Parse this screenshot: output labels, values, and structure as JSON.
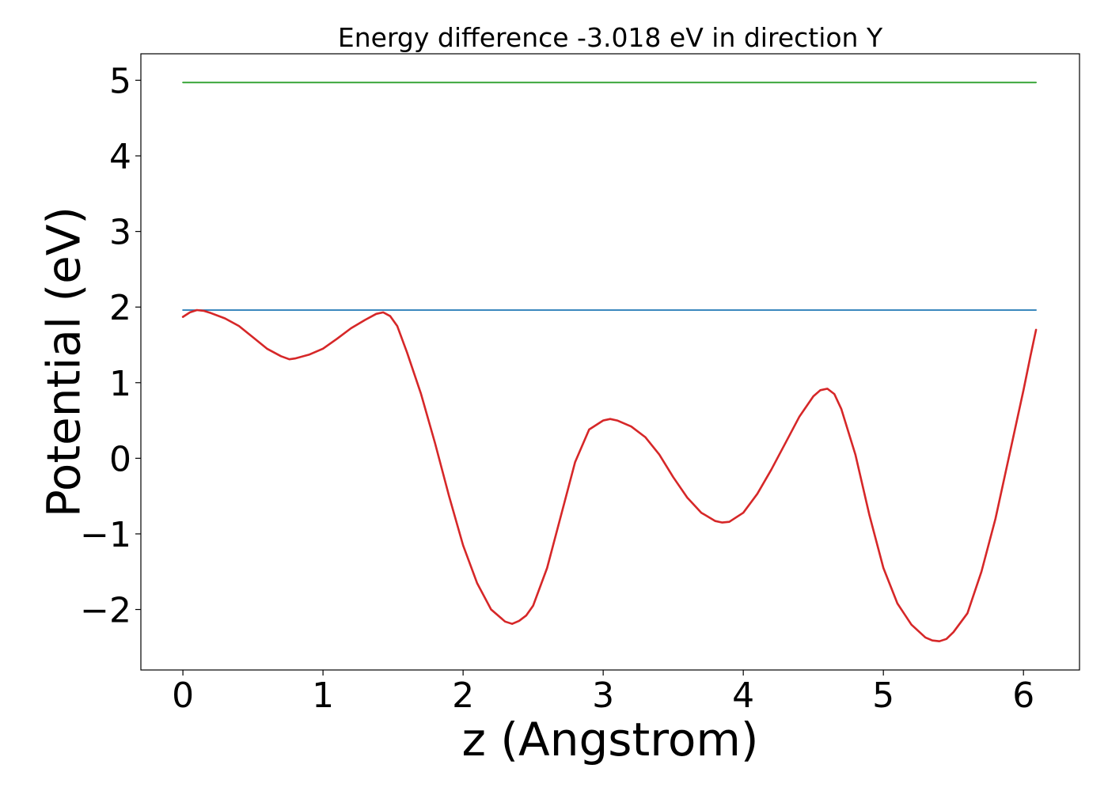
{
  "chart_data": {
    "type": "line",
    "title": "Energy difference -3.018 eV in direction Y",
    "xlabel": "z (Angstrom)",
    "ylabel": "Potential (eV)",
    "xlim": [
      -0.3,
      6.4
    ],
    "ylim": [
      -2.8,
      5.35
    ],
    "xticks": [
      0,
      1,
      2,
      3,
      4,
      5,
      6
    ],
    "xtick_labels": [
      "0",
      "1",
      "2",
      "3",
      "4",
      "5",
      "6"
    ],
    "yticks": [
      -2,
      -1,
      0,
      1,
      2,
      3,
      4,
      5
    ],
    "ytick_labels": [
      "−2",
      "−1",
      "0",
      "1",
      "2",
      "3",
      "4",
      "5"
    ],
    "grid": false,
    "legend": "none",
    "series": [
      {
        "color": "#2ca02c",
        "x": [
          0,
          6.09
        ],
        "y": [
          4.97,
          4.97
        ]
      },
      {
        "color": "#1f77b4",
        "x": [
          0,
          6.09
        ],
        "y": [
          1.96,
          1.96
        ]
      },
      {
        "color": "#d62728",
        "x": [
          0,
          0.05,
          0.1,
          0.15,
          0.2,
          0.3,
          0.4,
          0.5,
          0.6,
          0.7,
          0.76,
          0.8,
          0.9,
          1.0,
          1.1,
          1.2,
          1.3,
          1.38,
          1.43,
          1.48,
          1.53,
          1.6,
          1.7,
          1.8,
          1.9,
          2.0,
          2.1,
          2.2,
          2.3,
          2.35,
          2.4,
          2.45,
          2.5,
          2.6,
          2.7,
          2.8,
          2.9,
          3.0,
          3.05,
          3.1,
          3.2,
          3.3,
          3.4,
          3.5,
          3.6,
          3.7,
          3.8,
          3.85,
          3.9,
          4.0,
          4.1,
          4.2,
          4.3,
          4.4,
          4.5,
          4.55,
          4.6,
          4.65,
          4.7,
          4.8,
          4.9,
          5.0,
          5.1,
          5.2,
          5.3,
          5.35,
          5.4,
          5.45,
          5.5,
          5.6,
          5.7,
          5.8,
          5.9,
          6.0,
          6.05,
          6.09
        ],
        "y": [
          1.87,
          1.93,
          1.96,
          1.95,
          1.92,
          1.85,
          1.75,
          1.6,
          1.45,
          1.35,
          1.31,
          1.32,
          1.37,
          1.45,
          1.58,
          1.72,
          1.83,
          1.91,
          1.93,
          1.88,
          1.75,
          1.4,
          0.85,
          0.2,
          -0.5,
          -1.15,
          -1.65,
          -2.0,
          -2.16,
          -2.19,
          -2.15,
          -2.08,
          -1.95,
          -1.45,
          -0.75,
          -0.05,
          0.38,
          0.5,
          0.52,
          0.5,
          0.42,
          0.28,
          0.05,
          -0.25,
          -0.52,
          -0.72,
          -0.83,
          -0.85,
          -0.84,
          -0.72,
          -0.47,
          -0.15,
          0.2,
          0.55,
          0.82,
          0.9,
          0.92,
          0.85,
          0.65,
          0.05,
          -0.75,
          -1.45,
          -1.92,
          -2.2,
          -2.37,
          -2.41,
          -2.42,
          -2.39,
          -2.3,
          -2.05,
          -1.5,
          -0.8,
          0.05,
          0.9,
          1.35,
          1.7
        ]
      }
    ]
  }
}
